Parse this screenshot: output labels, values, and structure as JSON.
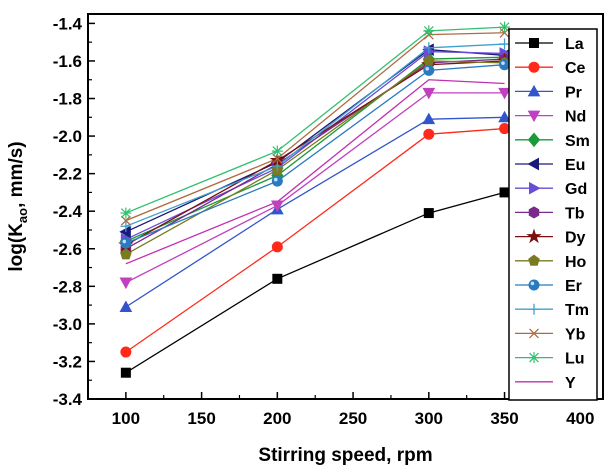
{
  "chart_data": {
    "type": "line",
    "xlabel": "Stirring speed, rpm",
    "ylabel_main": "log(K",
    "ylabel_sub": "ao",
    "ylabel_tail": ", mm/s)",
    "xlim": [
      75,
      415
    ],
    "ylim": [
      -3.4,
      -1.35
    ],
    "xticks": [
      100,
      150,
      200,
      250,
      300,
      350,
      400
    ],
    "yticks": [
      -3.4,
      -3.2,
      -3.0,
      -2.8,
      -2.6,
      -2.4,
      -2.2,
      -2.0,
      -1.8,
      -1.6,
      -1.4
    ],
    "ytick_labels": [
      "-3.4",
      "-3.2",
      "-3.0",
      "-2.8",
      "-2.6",
      "-2.4",
      "-2.2",
      "-2.0",
      "-1.8",
      "-1.6",
      "-1.4"
    ],
    "xtick_labels": [
      "100",
      "150",
      "200",
      "250",
      "300",
      "350",
      "400"
    ],
    "grid": false,
    "legend_position": "right",
    "x": [
      100,
      200,
      300,
      350
    ],
    "series": [
      {
        "name": "La",
        "color": "#000000",
        "marker": "square",
        "values": [
          -3.26,
          -2.76,
          -2.41,
          -2.3
        ]
      },
      {
        "name": "Ce",
        "color": "#ff2a1a",
        "marker": "circle",
        "values": [
          -3.15,
          -2.59,
          -1.99,
          -1.96
        ]
      },
      {
        "name": "Pr",
        "color": "#3355cc",
        "marker": "triangle-up",
        "values": [
          -2.91,
          -2.39,
          -1.91,
          -1.9
        ]
      },
      {
        "name": "Nd",
        "color": "#c040c0",
        "marker": "triangle-down",
        "values": [
          -2.78,
          -2.37,
          -1.77,
          -1.77
        ]
      },
      {
        "name": "Sm",
        "color": "#1a9a3a",
        "marker": "diamond",
        "values": [
          -2.56,
          -2.21,
          -1.59,
          -1.58
        ]
      },
      {
        "name": "Eu",
        "color": "#1a1a7a",
        "marker": "triangle-left",
        "values": [
          -2.51,
          -2.14,
          -1.54,
          -1.57
        ]
      },
      {
        "name": "Gd",
        "color": "#6a4cd6",
        "marker": "triangle-right",
        "values": [
          -2.55,
          -2.17,
          -1.55,
          -1.56
        ]
      },
      {
        "name": "Tb",
        "color": "#7a2a8a",
        "marker": "hexagon",
        "values": [
          -2.6,
          -2.15,
          -1.61,
          -1.59
        ]
      },
      {
        "name": "Dy",
        "color": "#7a1010",
        "marker": "star",
        "values": [
          -2.58,
          -2.13,
          -1.62,
          -1.6
        ]
      },
      {
        "name": "Ho",
        "color": "#7a7a20",
        "marker": "pentagon",
        "values": [
          -2.63,
          -2.18,
          -1.6,
          -1.61
        ]
      },
      {
        "name": "Er",
        "color": "#2a7ac0",
        "marker": "sphere",
        "values": [
          -2.57,
          -2.24,
          -1.65,
          -1.62
        ]
      },
      {
        "name": "Tm",
        "color": "#40a0d0",
        "marker": "plus",
        "values": [
          -2.48,
          -2.16,
          -1.53,
          -1.51
        ]
      },
      {
        "name": "Yb",
        "color": "#b06a40",
        "marker": "x",
        "values": [
          -2.45,
          -2.12,
          -1.46,
          -1.45
        ]
      },
      {
        "name": "Lu",
        "color": "#30c070",
        "marker": "asterisk",
        "values": [
          -2.41,
          -2.08,
          -1.44,
          -1.42
        ]
      },
      {
        "name": "Y",
        "color": "#c030b0",
        "marker": "line",
        "values": [
          -2.68,
          -2.35,
          -1.7,
          -1.72
        ]
      }
    ]
  }
}
